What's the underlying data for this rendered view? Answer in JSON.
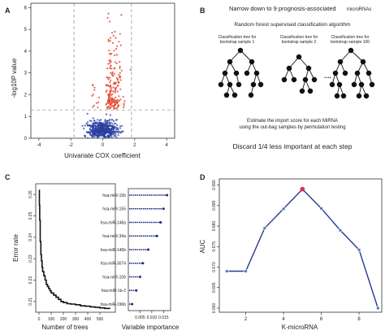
{
  "panels": {
    "A": {
      "label": "A",
      "ylabel": "-log10P value",
      "xlabel": "Univariate COX coefficient",
      "chart_data": {
        "type": "scatter",
        "xlabel": "Univariate COX coefficient",
        "ylabel": "-log10P value",
        "xlim": [
          -4.5,
          4.5
        ],
        "ylim": [
          0,
          6.2
        ],
        "xticks": [
          -4,
          -2,
          0,
          2,
          4
        ],
        "yticks": [
          0,
          1,
          2,
          3,
          4,
          5,
          6
        ],
        "thresholds": {
          "x": [
            -1.8,
            1.8
          ],
          "y": 1.3
        },
        "series": [
          {
            "group": "significant",
            "color": "#e0442a"
          },
          {
            "group": "not significant",
            "color": "#2a3fa0"
          }
        ],
        "legend": false
      }
    },
    "B": {
      "label": "B",
      "title": "Narrow down to 9 prognosis-associated",
      "title_suffix": "microRNAs",
      "subtitle": "Random forest supervised classification algorithm",
      "trees": [
        {
          "caption1": "Classification tree for",
          "caption2": "bootstrap sample 1"
        },
        {
          "caption1": "Classification tree for",
          "caption2": "bootstrap sample 2"
        },
        {
          "caption1": "Classification tree for",
          "caption2": "bootstrap sample 100"
        }
      ],
      "ellipsis": "....",
      "estimate1": "Estimate the import score for each MiRNA",
      "estimate2": "using the out-bag samples by permutation testing",
      "discard": "Discard 1/4 less important at each step"
    },
    "C": {
      "label": "C",
      "error_chart": {
        "chart_data": {
          "type": "line",
          "xlabel": "Number of trees",
          "ylabel": "Error rate",
          "xlim": [
            0,
            600
          ],
          "ylim": [
            0.205,
            0.265
          ],
          "xticks": [
            0,
            100,
            200,
            300,
            400,
            500
          ],
          "yticks": [
            0.21,
            0.22,
            0.23,
            0.24,
            0.25,
            0.26
          ],
          "x": [
            1,
            3,
            6,
            10,
            15,
            20,
            25,
            30,
            40,
            50,
            60,
            70,
            80,
            90,
            100,
            120,
            140,
            160,
            180,
            200,
            230,
            260,
            300,
            340,
            380,
            420,
            460,
            500,
            540,
            580
          ],
          "y": [
            0.262,
            0.255,
            0.248,
            0.238,
            0.232,
            0.229,
            0.226,
            0.224,
            0.222,
            0.22,
            0.218,
            0.217,
            0.216,
            0.215,
            0.214,
            0.213,
            0.212,
            0.211,
            0.21,
            0.2095,
            0.209,
            0.2088,
            0.2085,
            0.208,
            0.2078,
            0.2075,
            0.2073,
            0.207,
            0.2068,
            0.2065
          ]
        }
      },
      "importance_chart": {
        "chart_data": {
          "type": "bar",
          "xlabel": "Variable importance",
          "categories": [
            "hsa-miR-15b",
            "hsa-miR-155",
            "hsa-miR-148a",
            "hsa-miR-34a",
            "hsa-miR-146b",
            "hsa-miR-3074",
            "hsa-miR-106",
            "hsa-miR-1b-2",
            "hsa-miR-196b"
          ],
          "values": [
            0.0165,
            0.015,
            0.0138,
            0.0122,
            0.0085,
            0.0062,
            0.005,
            0.0034,
            0.0016
          ],
          "xlim": [
            0,
            0.018
          ],
          "xticks": [
            0.005,
            0.01,
            0.015
          ],
          "tick_labels": [
            "0.005",
            "0.010",
            "0.015"
          ]
        }
      }
    },
    "D": {
      "label": "D",
      "chart_data": {
        "type": "line",
        "xlabel": "K-microRNA",
        "ylabel": "AUC",
        "xlim": [
          0.6,
          9.2
        ],
        "ylim": [
          0.659,
          0.6915
        ],
        "xticks": [
          2,
          4,
          6,
          8
        ],
        "yticks": [
          0.66,
          0.665,
          0.67,
          0.675,
          0.68,
          0.685,
          0.69
        ],
        "tick_labels": [
          "0.660",
          "0.665",
          "0.670",
          "0.675",
          "0.680",
          "0.685",
          "0.690"
        ],
        "x": [
          1,
          2,
          3,
          4,
          5,
          6,
          7,
          8,
          9
        ],
        "y": [
          0.669,
          0.669,
          0.6795,
          0.6842,
          0.689,
          0.6843,
          0.679,
          0.6742,
          0.66
        ],
        "highlight_index": 4,
        "line_color": "#2a3a8c",
        "point_color": "#4a7fc4",
        "highlight_color": "#e0304a"
      }
    }
  }
}
